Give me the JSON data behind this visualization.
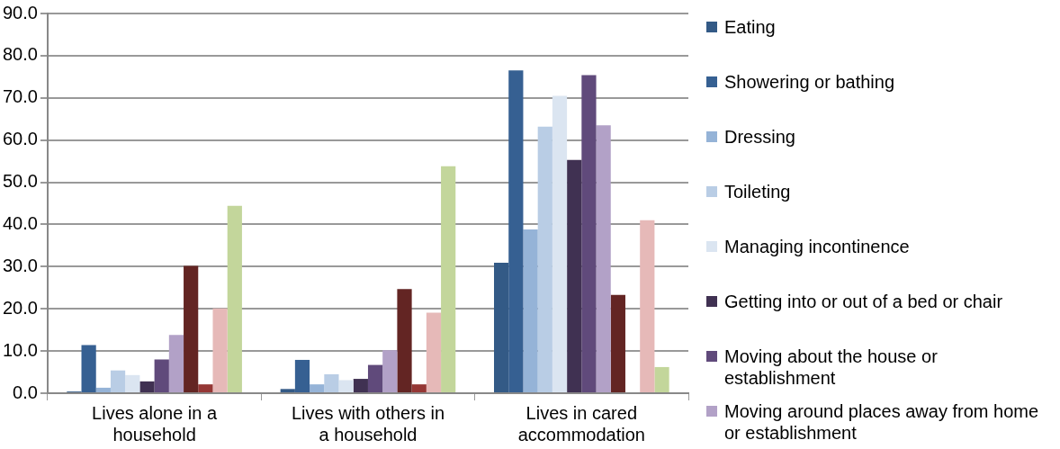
{
  "chart_data": {
    "type": "bar",
    "categories": [
      "Lives alone in a household",
      "Lives with others in a household",
      "Lives in cared accommodation"
    ],
    "series": [
      {
        "name": "Eating",
        "color": "#335a86",
        "values": [
          0.4,
          1.0,
          30.9
        ]
      },
      {
        "name": "Showering or bathing",
        "color": "#366092",
        "values": [
          11.4,
          7.9,
          76.5
        ]
      },
      {
        "name": "Dressing",
        "color": "#95b3d7",
        "values": [
          1.3,
          2.1,
          38.8
        ]
      },
      {
        "name": "Toileting",
        "color": "#b9cde5",
        "values": [
          5.4,
          4.5,
          63.2
        ]
      },
      {
        "name": "Managing incontinence",
        "color": "#dbe5f1",
        "values": [
          4.3,
          3.1,
          70.5
        ]
      },
      {
        "name": "Getting into or out of a bed or chair",
        "color": "#403152",
        "values": [
          2.8,
          3.4,
          55.3
        ]
      },
      {
        "name": "Moving about the house or establishment",
        "color": "#604a7b",
        "values": [
          8.0,
          6.7,
          75.4
        ]
      },
      {
        "name": "Moving around places away from home or establishment",
        "color": "#b2a1c7",
        "values": [
          13.8,
          10.2,
          63.5
        ]
      },
      {
        "color": "#632523",
        "values": [
          30.2,
          24.7,
          23.3
        ]
      },
      {
        "color": "#953735",
        "values": [
          2.1,
          2.1,
          null
        ]
      },
      {
        "color": "#e6b9b8",
        "values": [
          20.1,
          19.1,
          41.0
        ]
      },
      {
        "color": "#c3d69b",
        "values": [
          44.4,
          53.8,
          6.2
        ]
      }
    ],
    "ylim": [
      0,
      90
    ],
    "yticks": [
      {
        "value": 0,
        "label": "0.0"
      },
      {
        "value": 10,
        "label": "10.0"
      },
      {
        "value": 20,
        "label": "20.0"
      },
      {
        "value": 30,
        "label": "30.0"
      },
      {
        "value": 40,
        "label": "40.0"
      },
      {
        "value": 50,
        "label": "50.0"
      },
      {
        "value": 60,
        "label": "60.0"
      },
      {
        "value": 70,
        "label": "70.0"
      },
      {
        "value": 80,
        "label": "80.0"
      },
      {
        "value": 90,
        "label": "90.0"
      }
    ],
    "grid": "y",
    "legend": "right"
  }
}
